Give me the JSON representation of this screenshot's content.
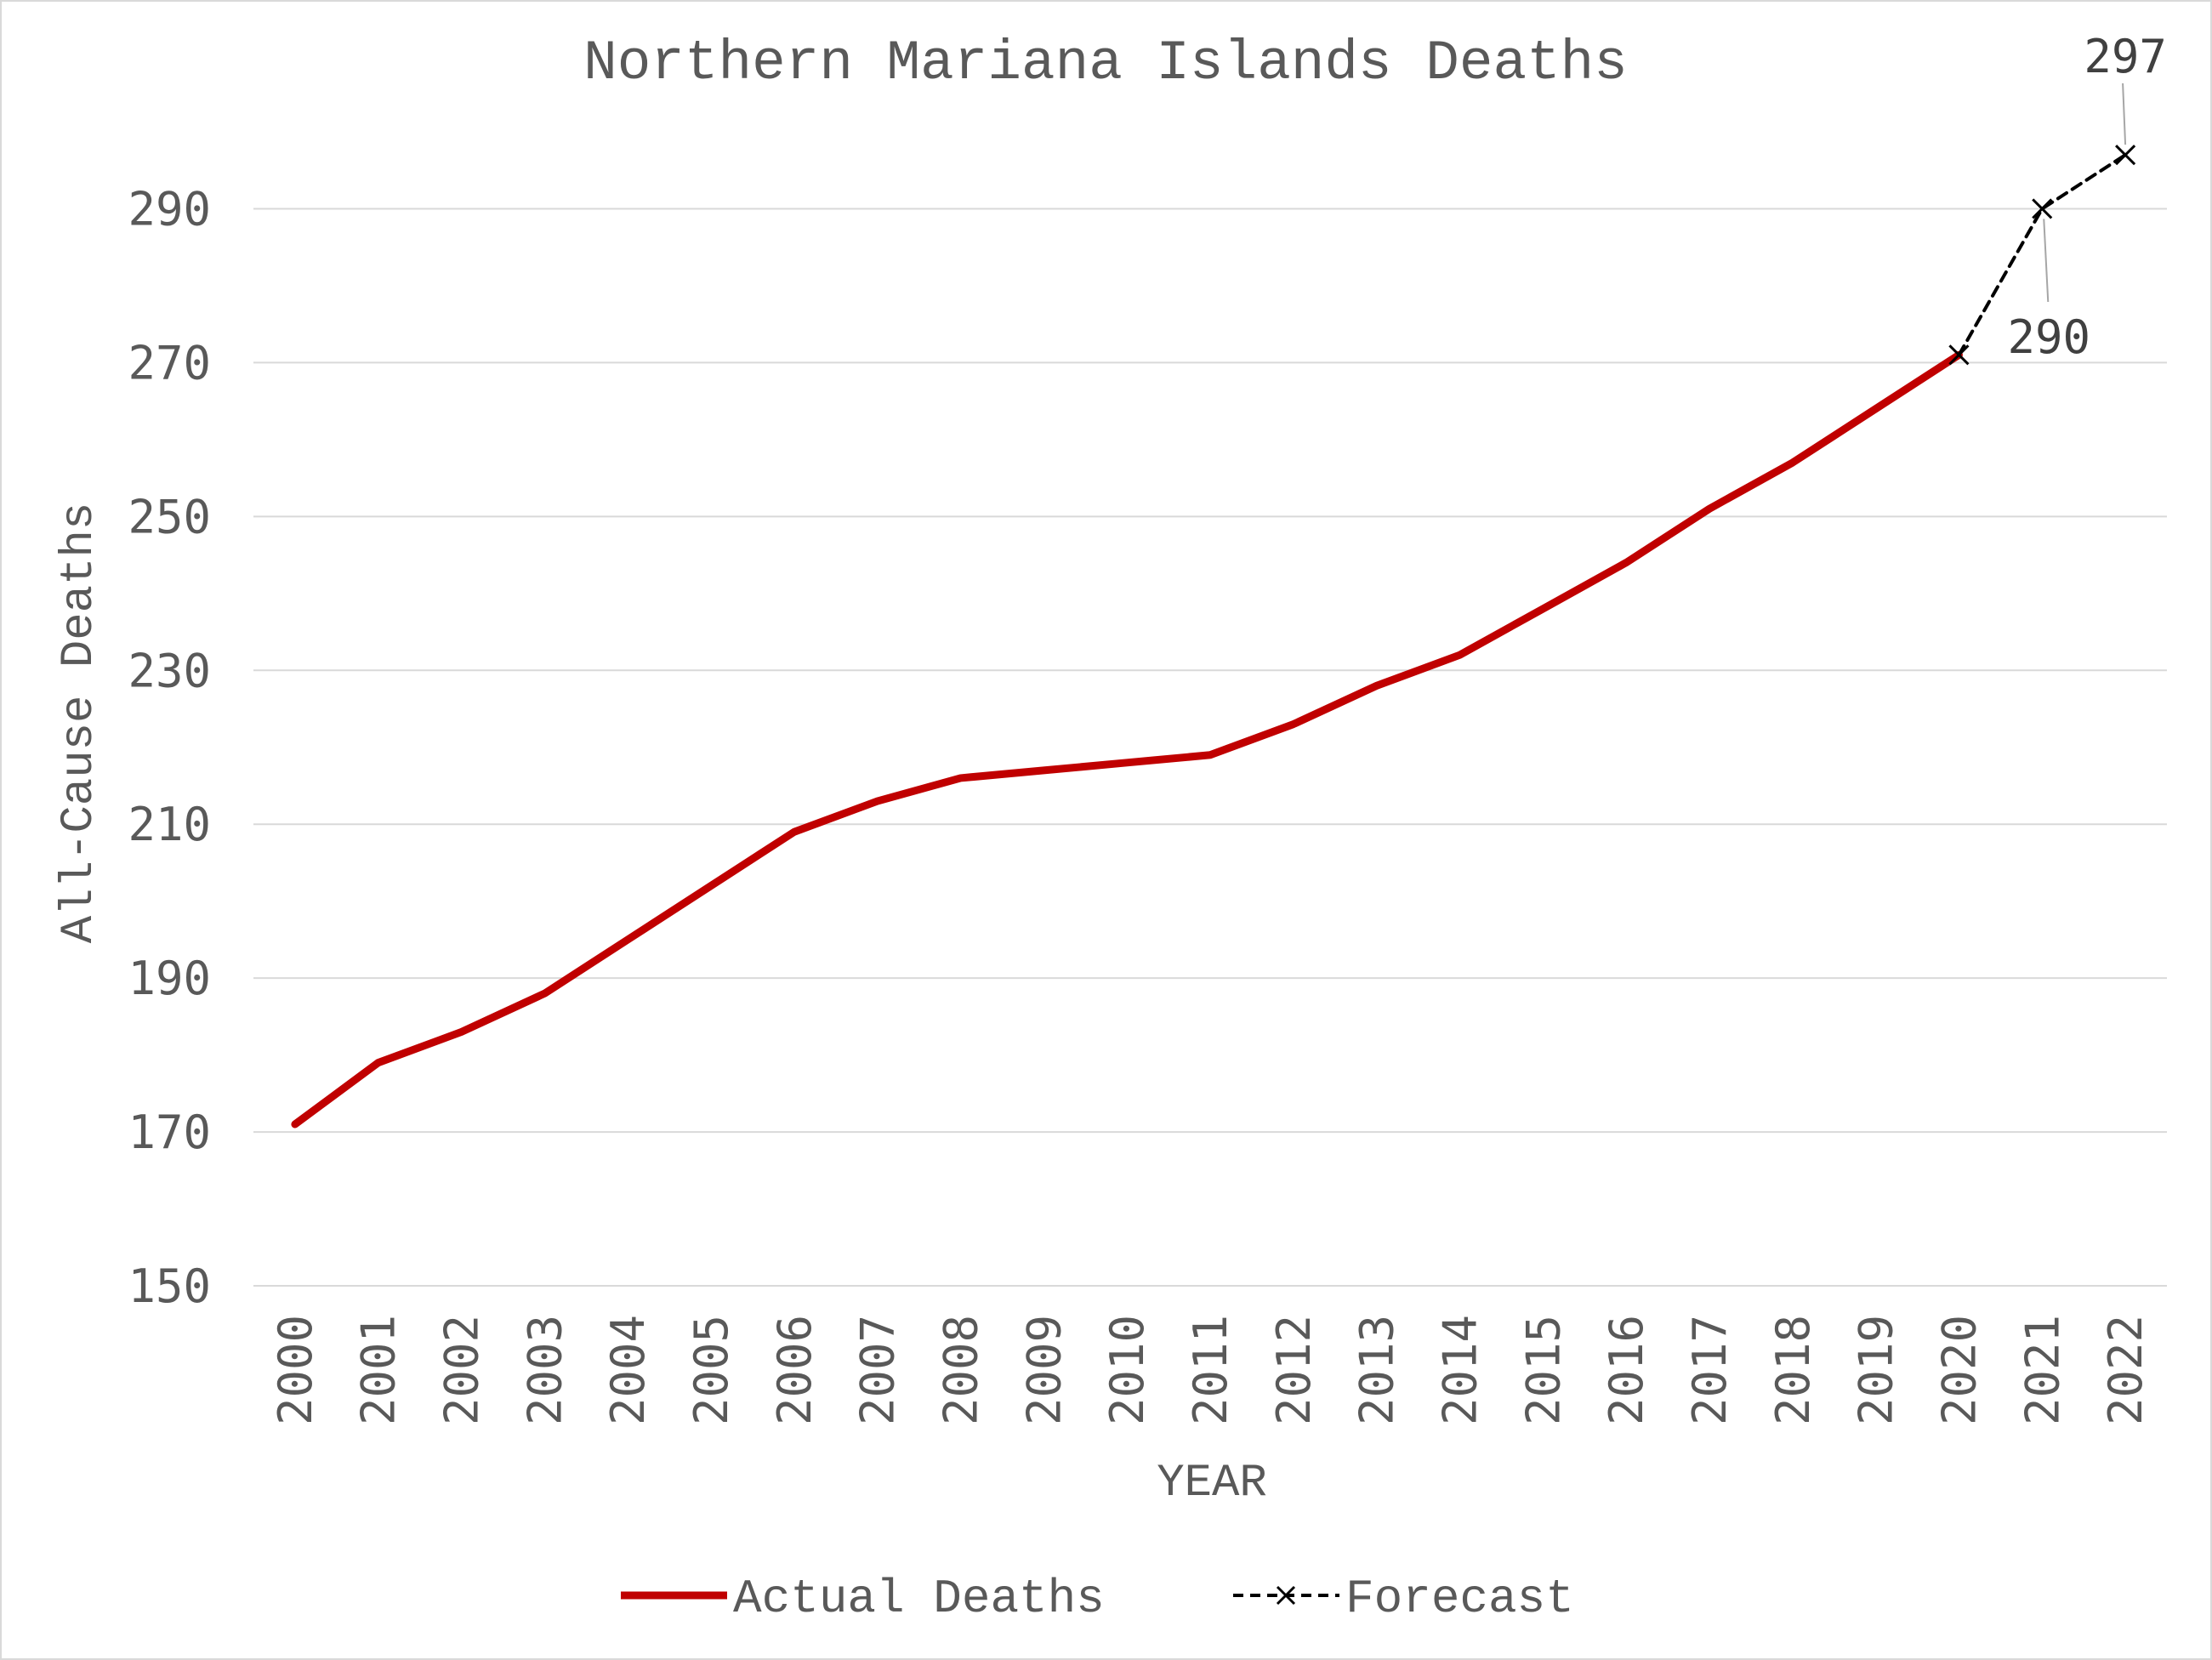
{
  "chart_data": {
    "type": "line",
    "title": "Northern Mariana Islands Deaths",
    "xlabel": "YEAR",
    "ylabel": "All-Cause Deaths",
    "categories": [
      "2000",
      "2001",
      "2002",
      "2003",
      "2004",
      "2005",
      "2006",
      "2007",
      "2008",
      "2009",
      "2010",
      "2011",
      "2012",
      "2013",
      "2014",
      "2015",
      "2016",
      "2017",
      "2018",
      "2019",
      "2020",
      "2021",
      "2022"
    ],
    "ylim": [
      150,
      300
    ],
    "yticks": [
      150,
      170,
      190,
      210,
      230,
      250,
      270,
      290
    ],
    "grid": true,
    "legend_position": "bottom",
    "series": [
      {
        "name": "Actual Deaths",
        "color": "#c00000",
        "style": "solid",
        "values": [
          171,
          179,
          183,
          188,
          195,
          202,
          209,
          213,
          216,
          217,
          218,
          219,
          223,
          228,
          232,
          238,
          244,
          251,
          257,
          264,
          271,
          null,
          null
        ]
      },
      {
        "name": "Forecast",
        "color": "#000000",
        "style": "dashed",
        "marker": "x",
        "values": [
          null,
          null,
          null,
          null,
          null,
          null,
          null,
          null,
          null,
          null,
          null,
          null,
          null,
          null,
          null,
          null,
          null,
          null,
          null,
          null,
          271,
          290,
          297
        ]
      }
    ],
    "annotations": [
      {
        "category": "2021",
        "value": 290,
        "text": "290"
      },
      {
        "category": "2022",
        "value": 297,
        "text": "297"
      }
    ]
  }
}
